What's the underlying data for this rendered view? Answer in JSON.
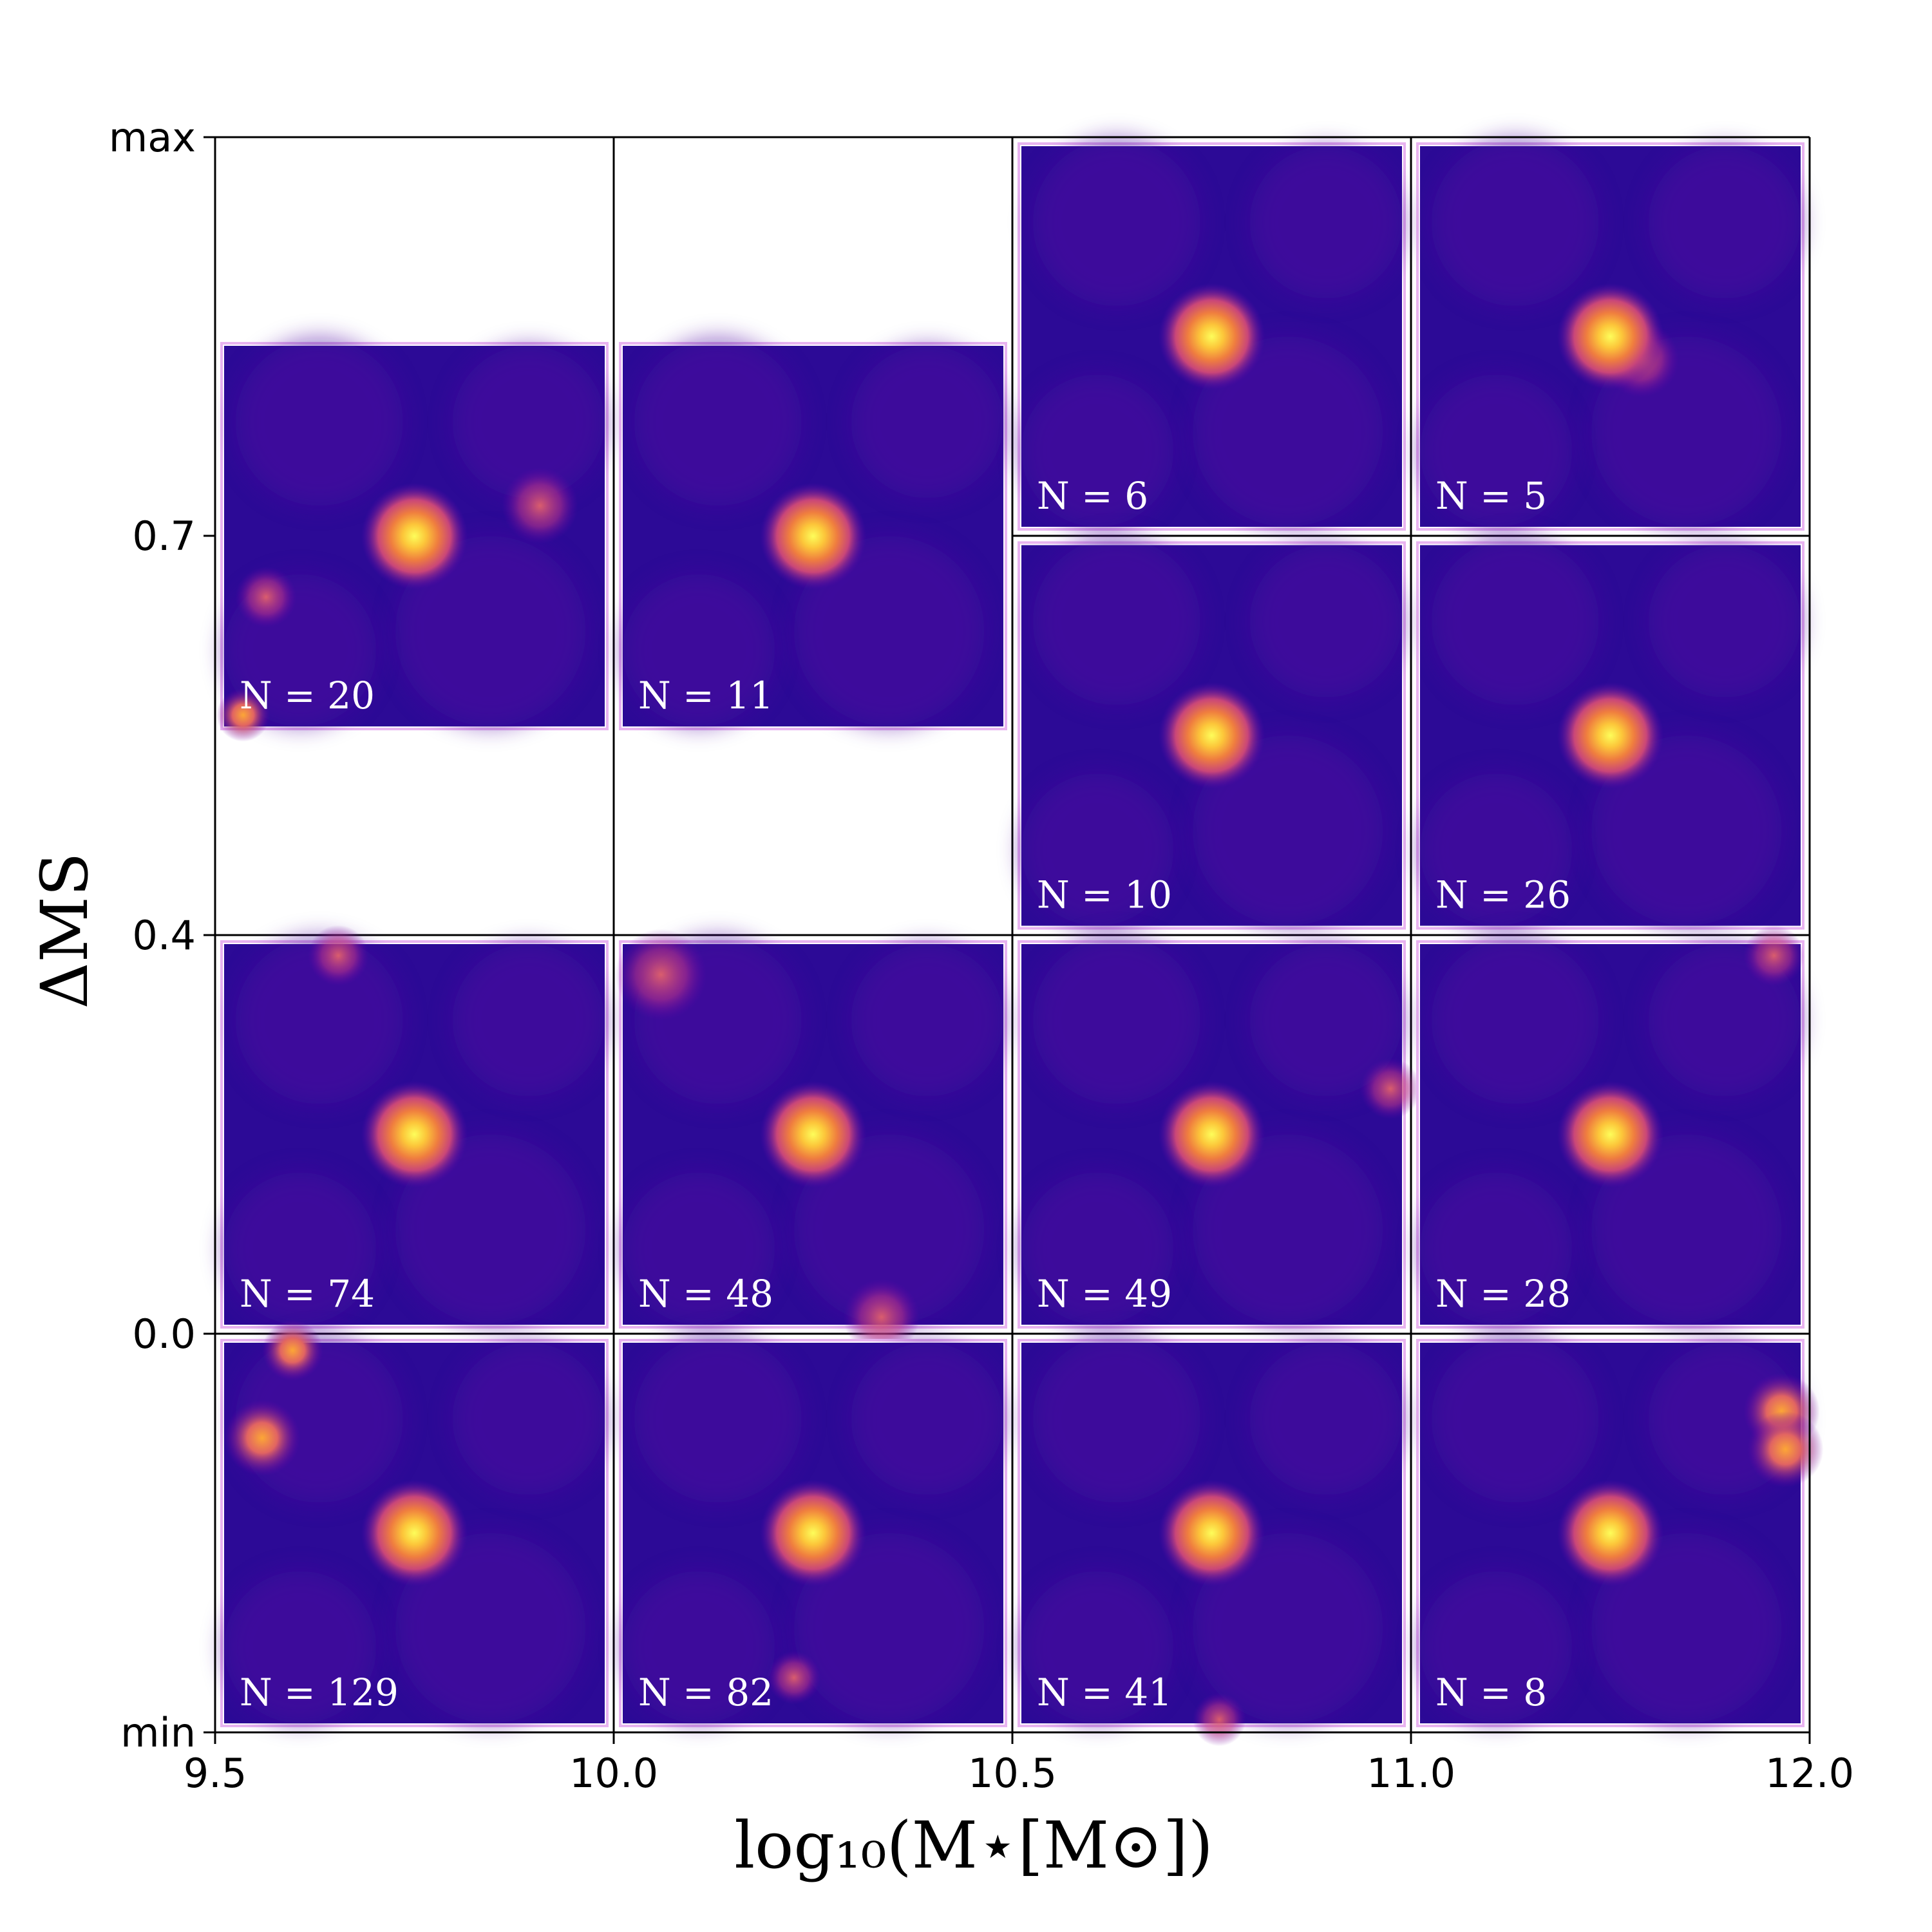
{
  "chart_data": {
    "type": "heatmap",
    "title": "",
    "xlabel": "log₁₀(M⋆[M⊙])",
    "ylabel": "ΔMS",
    "xlim": [
      9.5,
      12.0
    ],
    "x_ticks": [
      "9.5",
      "10.0",
      "10.5",
      "11.0",
      "12.0"
    ],
    "x_tick_values": [
      9.5,
      10.0,
      10.5,
      11.0,
      12.0
    ],
    "y_ticks": [
      "max",
      "0.7",
      "0.4",
      "0.0",
      "min"
    ],
    "colormap": "plasma",
    "bins": [
      {
        "mass_bin": [
          9.5,
          10.0
        ],
        "dms_bin": [
          "0.4",
          "max"
        ],
        "label": "N = 20",
        "N": 20
      },
      {
        "mass_bin": [
          10.0,
          10.5
        ],
        "dms_bin": [
          "0.4",
          "max"
        ],
        "label": "N = 11",
        "N": 11
      },
      {
        "mass_bin": [
          10.5,
          11.0
        ],
        "dms_bin": [
          "0.7",
          "max"
        ],
        "label": "N = 6",
        "N": 6
      },
      {
        "mass_bin": [
          11.0,
          12.0
        ],
        "dms_bin": [
          "0.7",
          "max"
        ],
        "label": "N = 5",
        "N": 5
      },
      {
        "mass_bin": [
          10.5,
          11.0
        ],
        "dms_bin": [
          "0.4",
          "0.7"
        ],
        "label": "N = 10",
        "N": 10
      },
      {
        "mass_bin": [
          11.0,
          12.0
        ],
        "dms_bin": [
          "0.4",
          "0.7"
        ],
        "label": "N = 26",
        "N": 26
      },
      {
        "mass_bin": [
          9.5,
          10.0
        ],
        "dms_bin": [
          "0.0",
          "0.4"
        ],
        "label": "N = 74",
        "N": 74
      },
      {
        "mass_bin": [
          10.0,
          10.5
        ],
        "dms_bin": [
          "0.0",
          "0.4"
        ],
        "label": "N = 48",
        "N": 48
      },
      {
        "mass_bin": [
          10.5,
          11.0
        ],
        "dms_bin": [
          "0.0",
          "0.4"
        ],
        "label": "N = 49",
        "N": 49
      },
      {
        "mass_bin": [
          11.0,
          12.0
        ],
        "dms_bin": [
          "0.0",
          "0.4"
        ],
        "label": "N = 28",
        "N": 28
      },
      {
        "mass_bin": [
          9.5,
          10.0
        ],
        "dms_bin": [
          "min",
          "0.0"
        ],
        "label": "N = 129",
        "N": 129
      },
      {
        "mass_bin": [
          10.0,
          10.5
        ],
        "dms_bin": [
          "min",
          "0.0"
        ],
        "label": "N = 82",
        "N": 82
      },
      {
        "mass_bin": [
          10.5,
          11.0
        ],
        "dms_bin": [
          "min",
          "0.0"
        ],
        "label": "N = 41",
        "N": 41
      },
      {
        "mass_bin": [
          11.0,
          12.0
        ],
        "dms_bin": [
          "min",
          "0.0"
        ],
        "label": "N = 8",
        "N": 8
      }
    ]
  }
}
